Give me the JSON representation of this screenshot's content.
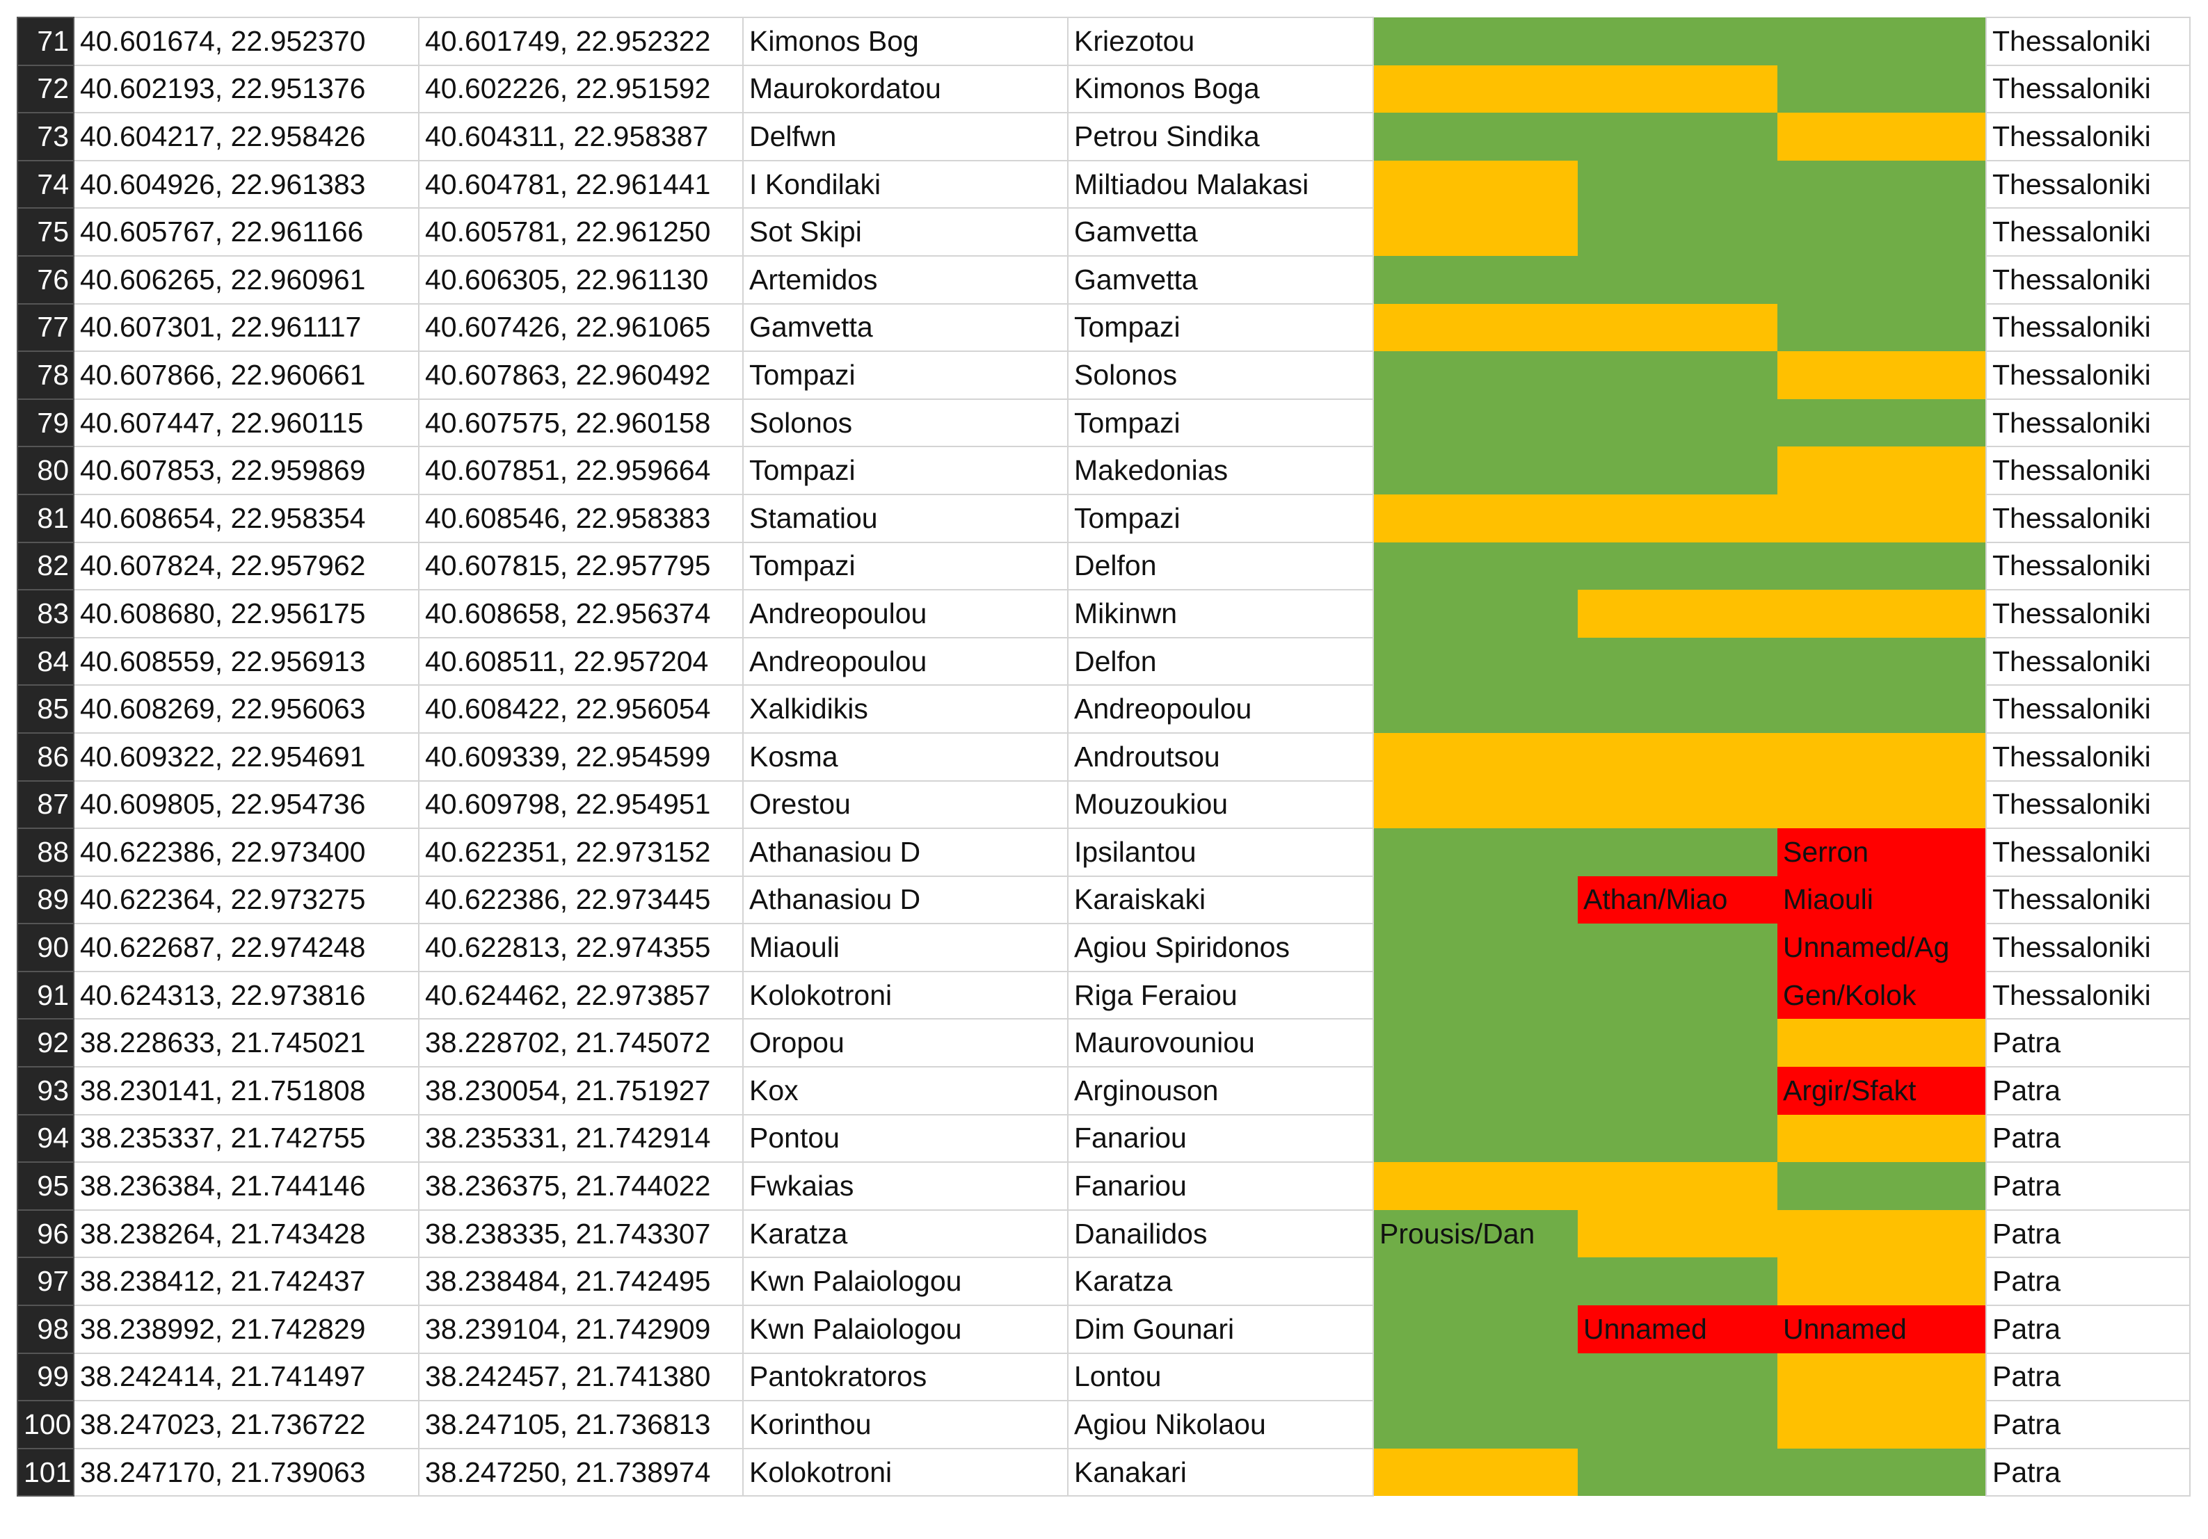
{
  "table": {
    "rows": [
      [
        "71",
        "40.601674, 22.952370",
        "40.601749, 22.952322",
        "Kimonos Bog",
        "Kriezotou",
        {
          "color": "#70ad47"
        },
        {
          "color": "#70ad47"
        },
        {
          "color": "#70ad47"
        },
        "Thessaloniki"
      ],
      [
        "72",
        "40.602193, 22.951376",
        "40.602226, 22.951592",
        "Maurokordatou",
        "Kimonos Boga",
        {
          "color": "#ffc000"
        },
        {
          "color": "#ffc000"
        },
        {
          "color": "#70ad47"
        },
        "Thessaloniki"
      ],
      [
        "73",
        "40.604217, 22.958426",
        "40.604311, 22.958387",
        "Delfwn",
        "Petrou Sindika",
        {
          "color": "#70ad47"
        },
        {
          "color": "#70ad47"
        },
        {
          "color": "#ffc000"
        },
        "Thessaloniki"
      ],
      [
        "74",
        "40.604926, 22.961383",
        "40.604781, 22.961441",
        "I Kondilaki",
        "Miltiadou Malakasi",
        {
          "color": "#ffc000"
        },
        {
          "color": "#70ad47"
        },
        {
          "color": "#70ad47"
        },
        "Thessaloniki"
      ],
      [
        "75",
        "40.605767, 22.961166",
        "40.605781, 22.961250",
        "Sot Skipi",
        "Gamvetta",
        {
          "color": "#ffc000"
        },
        {
          "color": "#70ad47"
        },
        {
          "color": "#70ad47"
        },
        "Thessaloniki"
      ],
      [
        "76",
        "40.606265, 22.960961",
        "40.606305, 22.961130",
        "Artemidos",
        "Gamvetta",
        {
          "color": "#70ad47"
        },
        {
          "color": "#70ad47"
        },
        {
          "color": "#70ad47"
        },
        "Thessaloniki"
      ],
      [
        "77",
        "40.607301, 22.961117",
        "40.607426, 22.961065",
        "Gamvetta",
        "Tompazi",
        {
          "color": "#ffc000"
        },
        {
          "color": "#ffc000"
        },
        {
          "color": "#70ad47"
        },
        "Thessaloniki"
      ],
      [
        "78",
        "40.607866, 22.960661",
        "40.607863, 22.960492",
        "Tompazi",
        "Solonos",
        {
          "color": "#70ad47"
        },
        {
          "color": "#70ad47"
        },
        {
          "color": "#ffc000"
        },
        "Thessaloniki"
      ],
      [
        "79",
        "40.607447, 22.960115",
        "40.607575, 22.960158",
        "Solonos",
        "Tompazi",
        {
          "color": "#70ad47"
        },
        {
          "color": "#70ad47"
        },
        {
          "color": "#70ad47"
        },
        "Thessaloniki"
      ],
      [
        "80",
        "40.607853, 22.959869",
        "40.607851, 22.959664",
        "Tompazi",
        "Makedonias",
        {
          "color": "#70ad47"
        },
        {
          "color": "#70ad47"
        },
        {
          "color": "#ffc000"
        },
        "Thessaloniki"
      ],
      [
        "81",
        "40.608654, 22.958354",
        "40.608546, 22.958383",
        "Stamatiou",
        "Tompazi",
        {
          "color": "#ffc000"
        },
        {
          "color": "#ffc000"
        },
        {
          "color": "#ffc000"
        },
        "Thessaloniki"
      ],
      [
        "82",
        "40.607824, 22.957962",
        "40.607815, 22.957795",
        "Tompazi",
        "Delfon",
        {
          "color": "#70ad47"
        },
        {
          "color": "#70ad47"
        },
        {
          "color": "#70ad47"
        },
        "Thessaloniki"
      ],
      [
        "83",
        "40.608680, 22.956175",
        "40.608658, 22.956374",
        "Andreopoulou",
        "Mikinwn",
        {
          "color": "#70ad47"
        },
        {
          "color": "#ffc000"
        },
        {
          "color": "#ffc000"
        },
        "Thessaloniki"
      ],
      [
        "84",
        "40.608559, 22.956913",
        "40.608511, 22.957204",
        "Andreopoulou",
        "Delfon",
        {
          "color": "#70ad47"
        },
        {
          "color": "#70ad47"
        },
        {
          "color": "#70ad47"
        },
        "Thessaloniki"
      ],
      [
        "85",
        "40.608269, 22.956063",
        "40.608422, 22.956054",
        "Xalkidikis",
        "Andreopoulou",
        {
          "color": "#70ad47"
        },
        {
          "color": "#70ad47"
        },
        {
          "color": "#70ad47"
        },
        "Thessaloniki"
      ],
      [
        "86",
        "40.609322, 22.954691",
        "40.609339, 22.954599",
        "Kosma",
        "Androutsou",
        {
          "color": "#ffc000"
        },
        {
          "color": "#ffc000"
        },
        {
          "color": "#ffc000"
        },
        "Thessaloniki"
      ],
      [
        "87",
        "40.609805, 22.954736",
        "40.609798, 22.954951",
        "Orestou",
        "Mouzoukiou",
        {
          "color": "#ffc000"
        },
        {
          "color": "#ffc000"
        },
        {
          "color": "#ffc000"
        },
        "Thessaloniki"
      ],
      [
        "88",
        "40.622386, 22.973400",
        "40.622351, 22.973152",
        "Athanasiou D",
        "Ipsilantou",
        {
          "color": "#70ad47"
        },
        {
          "color": "#70ad47"
        },
        {
          "color": "#ff0000",
          "text": "Serron"
        },
        "Thessaloniki"
      ],
      [
        "89",
        "40.622364, 22.973275",
        "40.622386, 22.973445",
        "Athanasiou D",
        "Karaiskaki",
        {
          "color": "#70ad47"
        },
        {
          "color": "#ff0000",
          "text": "Athan/Miao"
        },
        {
          "color": "#ff0000",
          "text": "Miaouli"
        },
        "Thessaloniki"
      ],
      [
        "90",
        "40.622687, 22.974248",
        "40.622813, 22.974355",
        "Miaouli",
        "Agiou Spiridonos",
        {
          "color": "#70ad47"
        },
        {
          "color": "#70ad47"
        },
        {
          "color": "#ff0000",
          "text": "Unnamed/Ag"
        },
        "Thessaloniki"
      ],
      [
        "91",
        "40.624313, 22.973816",
        "40.624462, 22.973857",
        "Kolokotroni",
        "Riga Feraiou",
        {
          "color": "#70ad47"
        },
        {
          "color": "#70ad47"
        },
        {
          "color": "#ff0000",
          "text": "Gen/Kolok"
        },
        "Thessaloniki"
      ],
      [
        "92",
        "38.228633, 21.745021",
        "38.228702, 21.745072",
        "Oropou",
        "Maurovouniou",
        {
          "color": "#70ad47"
        },
        {
          "color": "#70ad47"
        },
        {
          "color": "#ffc000"
        },
        "Patra"
      ],
      [
        "93",
        "38.230141, 21.751808",
        "38.230054, 21.751927",
        "Kox",
        "Arginouson",
        {
          "color": "#70ad47"
        },
        {
          "color": "#70ad47"
        },
        {
          "color": "#ff0000",
          "text": "Argir/Sfakt"
        },
        "Patra"
      ],
      [
        "94",
        "38.235337, 21.742755",
        "38.235331, 21.742914",
        "Pontou",
        "Fanariou",
        {
          "color": "#70ad47"
        },
        {
          "color": "#70ad47"
        },
        {
          "color": "#ffc000"
        },
        "Patra"
      ],
      [
        "95",
        "38.236384, 21.744146",
        "38.236375, 21.744022",
        "Fwkaias",
        "Fanariou",
        {
          "color": "#ffc000"
        },
        {
          "color": "#ffc000"
        },
        {
          "color": "#70ad47"
        },
        "Patra"
      ],
      [
        "96",
        "38.238264, 21.743428",
        "38.238335, 21.743307",
        "Karatza",
        "Danailidos",
        {
          "color": "#70ad47",
          "text": "Prousis/Dan"
        },
        {
          "color": "#ffc000"
        },
        {
          "color": "#ffc000"
        },
        "Patra"
      ],
      [
        "97",
        "38.238412, 21.742437",
        "38.238484, 21.742495",
        "Kwn Palaiologou",
        "Karatza",
        {
          "color": "#70ad47"
        },
        {
          "color": "#70ad47"
        },
        {
          "color": "#ffc000"
        },
        "Patra"
      ],
      [
        "98",
        "38.238992, 21.742829",
        "38.239104, 21.742909",
        "Kwn Palaiologou",
        "Dim Gounari",
        {
          "color": "#70ad47"
        },
        {
          "color": "#ff0000",
          "text": "Unnamed"
        },
        {
          "color": "#ff0000",
          "text": "Unnamed"
        },
        "Patra"
      ],
      [
        "99",
        "38.242414, 21.741497",
        "38.242457, 21.741380",
        "Pantokratoros",
        "Lontou",
        {
          "color": "#70ad47"
        },
        {
          "color": "#70ad47"
        },
        {
          "color": "#ffc000"
        },
        "Patra"
      ],
      [
        "100",
        "38.247023, 21.736722",
        "38.247105, 21.736813",
        "Korinthou",
        "Agiou Nikolaou",
        {
          "color": "#70ad47"
        },
        {
          "color": "#70ad47"
        },
        {
          "color": "#ffc000"
        },
        "Patra"
      ],
      [
        "101",
        "38.247170, 21.739063",
        "38.247250, 21.738974",
        "Kolokotroni",
        "Kanakari",
        {
          "color": "#ffc000"
        },
        {
          "color": "#70ad47"
        },
        {
          "color": "#70ad47"
        },
        "Patra"
      ]
    ]
  }
}
